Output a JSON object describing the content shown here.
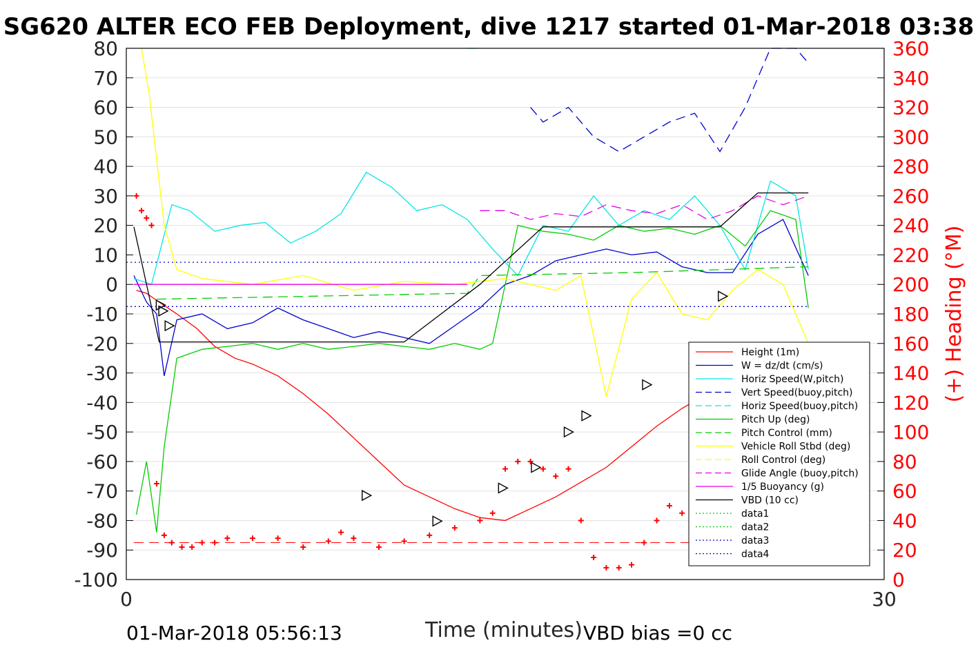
{
  "chart_data": {
    "type": "line",
    "title": "SG620 ALTER ECO FEB Deployment, dive 1217 started 01-Mar-2018 03:38",
    "xlabel": "Time (minutes)",
    "ylabel_right": "(+) Heading (°M)",
    "xlim": [
      0,
      30
    ],
    "ylim_left": [
      -100,
      80
    ],
    "ylim_right": [
      0,
      360
    ],
    "xticks": [
      "0",
      "30"
    ],
    "yticks_left": [
      "80",
      "70",
      "60",
      "50",
      "40",
      "30",
      "20",
      "10",
      "0",
      "-10",
      "-20",
      "-30",
      "-40",
      "-50",
      "-60",
      "-70",
      "-80",
      "-90",
      "-100"
    ],
    "yticks_right": [
      "360",
      "340",
      "320",
      "300",
      "280",
      "260",
      "240",
      "220",
      "200",
      "180",
      "160",
      "140",
      "120",
      "100",
      "80",
      "60",
      "40",
      "20",
      "0"
    ],
    "footer_left": "01-Mar-2018 05:56:13",
    "footer_right": "VBD bias =0 cc",
    "grid": "horizontal",
    "legend_position": "bottom-right",
    "series": [
      {
        "name": "Height (1m)",
        "color": "#ff0000",
        "style": "solid",
        "x": [
          0.4,
          0.8,
          1.3,
          2.0,
          2.8,
          3.5,
          4.3,
          5.0,
          6.0,
          7.0,
          8.0,
          9.0,
          10.0,
          11.0,
          12.0,
          13.0,
          14.0,
          15.0,
          16.0,
          17.0,
          18.0,
          19.0,
          20.0,
          21.0,
          22.0,
          23.0,
          24.0,
          25.0,
          25.9
        ],
        "y": [
          -2,
          -3,
          -6,
          -10,
          -15,
          -21,
          -25,
          -27,
          -31,
          -37,
          -44,
          -52,
          -60,
          -68,
          -72,
          -76,
          -79,
          -80,
          -76,
          -72,
          -67,
          -62,
          -55,
          -48,
          -42,
          -37,
          -36,
          -33,
          -25
        ]
      },
      {
        "name": "W = dz/dt (cm/s)",
        "color": "#0000cc",
        "style": "solid",
        "x": [
          0.3,
          0.8,
          1.2,
          1.5,
          2.0,
          3.0,
          4.0,
          5.0,
          6.0,
          7.0,
          8.0,
          9.0,
          10.0,
          11.0,
          12.0,
          13.0,
          14.0,
          15.0,
          16.0,
          17.0,
          18.0,
          19.0,
          20.0,
          21.0,
          22.0,
          23.0,
          24.0,
          25.0,
          26.0,
          27.0
        ],
        "y": [
          3,
          -6,
          -10,
          -31,
          -12,
          -10,
          -15,
          -13,
          -8,
          -12,
          -15,
          -18,
          -16,
          -18,
          -20,
          -14,
          -8,
          0,
          3,
          8,
          10,
          12,
          10,
          11,
          6,
          4,
          4,
          17,
          22,
          3
        ]
      },
      {
        "name": "Horiz Speed(W,pitch)",
        "color": "#00e6e6",
        "style": "solid",
        "x": [
          0.3,
          1.0,
          1.8,
          2.5,
          3.5,
          4.5,
          5.5,
          6.5,
          7.5,
          8.5,
          9.5,
          10.5,
          11.5,
          12.5,
          13.5,
          14.5,
          15.5,
          16.5,
          17.5,
          18.5,
          19.5,
          20.5,
          21.5,
          22.5,
          23.5,
          24.5,
          25.5,
          26.5,
          27.0
        ],
        "y": [
          2,
          0,
          27,
          25,
          18,
          20,
          21,
          14,
          18,
          24,
          38,
          33,
          25,
          27,
          22,
          12,
          3,
          20,
          18,
          30,
          20,
          25,
          22,
          30,
          20,
          5,
          35,
          30,
          5
        ]
      },
      {
        "name": "Vert Speed(buoy,pitch)",
        "color": "#0000cc",
        "style": "dashed",
        "x": [
          16.0,
          16.5,
          17.5,
          18.5,
          19.5,
          20.5,
          21.5,
          22.5,
          23.5,
          24.5,
          25.5,
          26.5,
          27.0
        ],
        "y": [
          60,
          55,
          60,
          50,
          45,
          50,
          55,
          58,
          45,
          60,
          80,
          80,
          75
        ]
      },
      {
        "name": "Horiz Speed(buoy,pitch)",
        "color": "#00e6e6",
        "style": "dashed",
        "x": [
          13.5,
          14.0
        ],
        "y": [
          80,
          80
        ]
      },
      {
        "name": "Pitch Up (deg)",
        "color": "#00cc00",
        "style": "solid",
        "x": [
          0.4,
          0.8,
          1.2,
          1.5,
          2.0,
          3.0,
          4.0,
          5.0,
          6.0,
          7.0,
          8.0,
          9.0,
          10.0,
          11.0,
          12.0,
          13.0,
          14.0,
          14.5,
          15.5,
          16.5,
          17.5,
          18.5,
          19.5,
          20.5,
          21.5,
          22.5,
          23.5,
          24.5,
          25.5,
          26.5,
          27.0
        ],
        "y": [
          -78,
          -60,
          -84,
          -55,
          -25,
          -22,
          -21,
          -20,
          -22,
          -20,
          -22,
          -21,
          -20,
          -21,
          -22,
          -20,
          -22,
          -20,
          20,
          18,
          17,
          15,
          20,
          18,
          19,
          17,
          20,
          13,
          25,
          22,
          -8
        ]
      },
      {
        "name": "Pitch Control (mm)",
        "color": "#00cc00",
        "style": "dashed",
        "x": [
          1.2,
          13.5,
          14.0,
          20.0,
          27.0
        ],
        "y": [
          -5,
          -3,
          3,
          4,
          6
        ]
      },
      {
        "name": "Vehicle Roll Stbd (deg)",
        "color": "#ffff00",
        "style": "solid",
        "x": [
          0.6,
          0.9,
          1.5,
          2.0,
          3.0,
          5.0,
          7.0,
          9.0,
          11.0,
          13.0,
          15.0,
          16.0,
          17.0,
          18.0,
          19.0,
          20.0,
          21.0,
          22.0,
          23.0,
          24.0,
          25.0,
          26.0,
          27.0
        ],
        "y": [
          80,
          65,
          20,
          5,
          2,
          0,
          3,
          -2,
          1,
          0,
          2,
          0,
          -2,
          3,
          -38,
          -5,
          4,
          -10,
          -12,
          -2,
          5,
          0,
          -20
        ]
      },
      {
        "name": "Roll Control (deg)",
        "color": "#ffff00",
        "style": "dashed",
        "x": [],
        "y": []
      },
      {
        "name": "Glide Angle (buoy,pitch)",
        "color": "#e600e6",
        "style": "dashed",
        "x": [
          14.0,
          15.0,
          16.0,
          17.0,
          18.0,
          19.0,
          20.0,
          21.0,
          22.0,
          23.0,
          24.0,
          25.0,
          26.0,
          27.0
        ],
        "y": [
          25,
          25,
          22,
          24,
          23,
          27,
          25,
          24,
          27,
          22,
          25,
          30,
          27,
          30
        ]
      },
      {
        "name": "1/5 Buoyancy (g)",
        "color": "#e600e6",
        "style": "solid",
        "x": [
          0.3,
          13.5
        ],
        "y": [
          0,
          0
        ]
      },
      {
        "name": "VBD (10 cc)",
        "color": "#000000",
        "style": "solid",
        "x": [
          0.3,
          1.3,
          11.0,
          14.0,
          16.5,
          23.5,
          25.0,
          27.0
        ],
        "y": [
          19.5,
          -19.5,
          -19.5,
          0,
          19.5,
          19.5,
          31,
          31
        ]
      },
      {
        "name": "data1",
        "color": "#00cc00",
        "style": "dotted",
        "x": [],
        "y": []
      },
      {
        "name": "data2",
        "color": "#00cc00",
        "style": "dotted",
        "x": [],
        "y": []
      },
      {
        "name": "data3",
        "color": "#0000cc",
        "style": "dotted",
        "x": [
          0,
          27
        ],
        "y": [
          7.5,
          7.5
        ]
      },
      {
        "name": "data4",
        "color": "#0000cc",
        "style": "dotted",
        "x": [
          0,
          27
        ],
        "y": [
          -7.5,
          -7.5
        ]
      }
    ],
    "heading_series": {
      "marker": "+",
      "color": "#ff0000",
      "axis": "right",
      "x": [
        0.4,
        0.6,
        0.8,
        1.0,
        1.2,
        1.5,
        1.8,
        2.2,
        2.6,
        3.0,
        3.5,
        4.0,
        5.0,
        6.0,
        7.0,
        8.0,
        8.5,
        9.0,
        10.0,
        11.0,
        12.0,
        13.0,
        14.0,
        14.5,
        15.0,
        15.5,
        16.0,
        16.5,
        17.0,
        17.5,
        18.0,
        18.5,
        19.0,
        19.5,
        20.0,
        20.5,
        21.0,
        21.5,
        22.0,
        23.0,
        24.0,
        25.0,
        25.5
      ],
      "y": [
        260,
        250,
        245,
        240,
        65,
        30,
        25,
        22,
        22,
        25,
        25,
        28,
        28,
        28,
        22,
        26,
        32,
        28,
        22,
        26,
        30,
        35,
        40,
        45,
        75,
        80,
        80,
        75,
        70,
        75,
        40,
        15,
        8,
        8,
        10,
        25,
        40,
        50,
        45,
        30,
        40,
        38,
        45
      ]
    },
    "heading_ref": {
      "color": "#ff0000",
      "style": "dashed",
      "value": 25
    }
  }
}
